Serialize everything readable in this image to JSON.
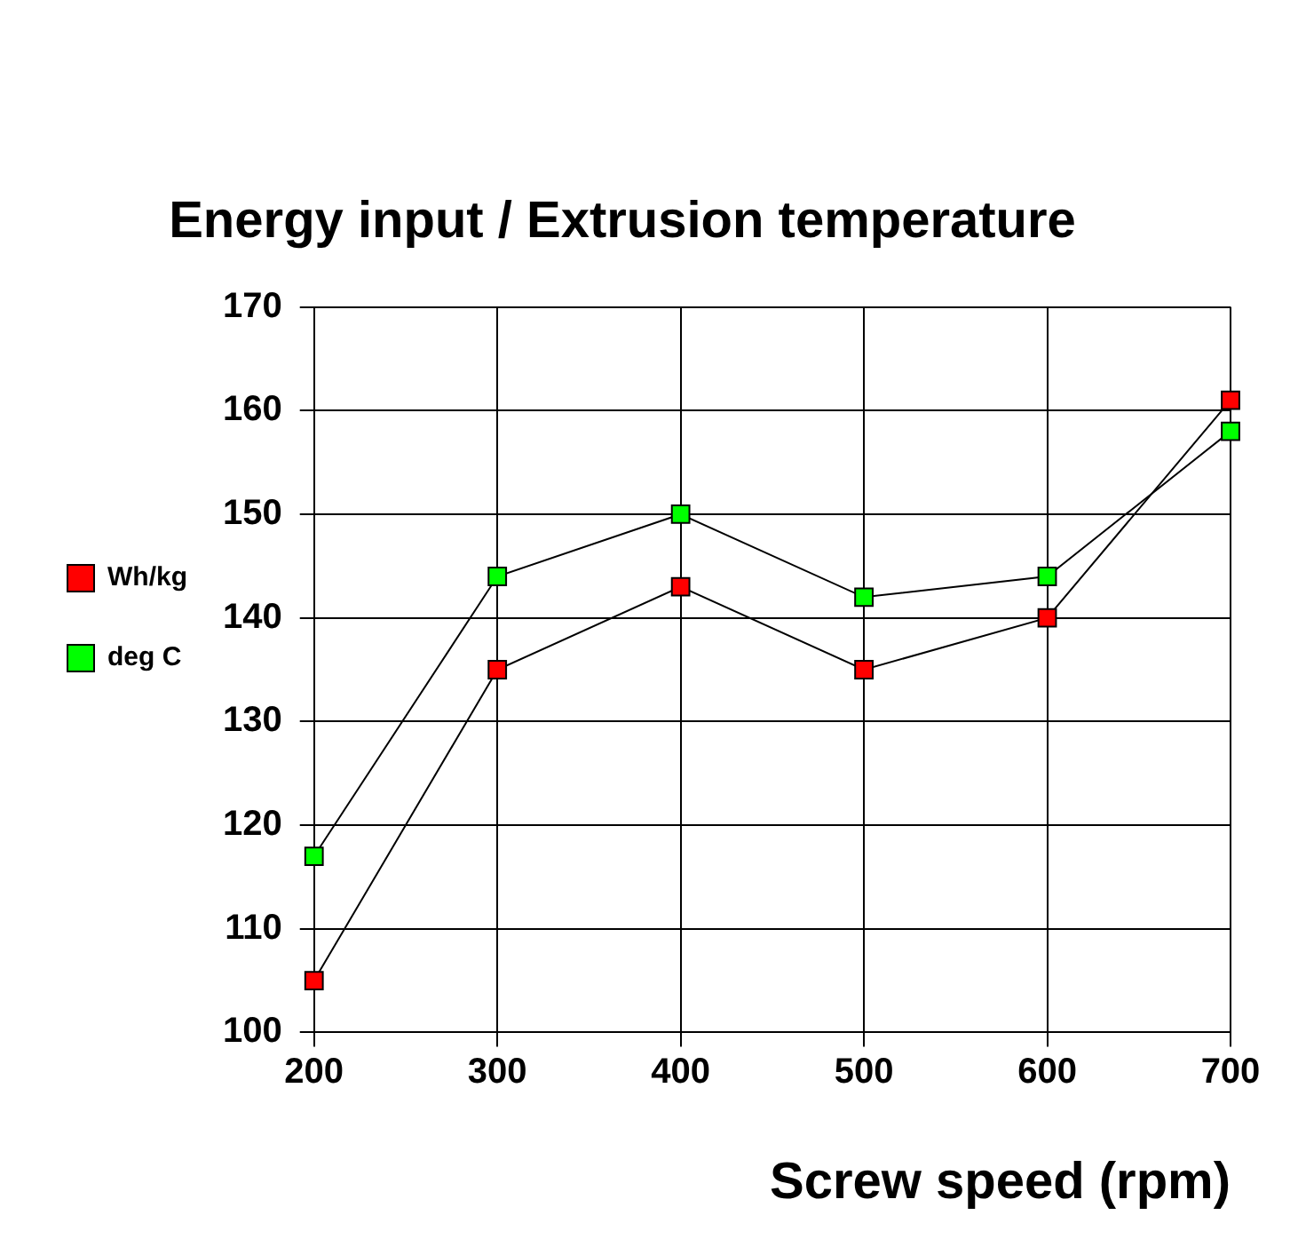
{
  "chart_data": {
    "type": "line",
    "title": "Energy input / Extrusion temperature",
    "xlabel": "Screw speed (rpm)",
    "x": [
      200,
      300,
      400,
      500,
      600,
      700
    ],
    "series": [
      {
        "name": "Wh/kg",
        "color": "#ff0000",
        "values": [
          105,
          135,
          143,
          135,
          140,
          161
        ]
      },
      {
        "name": "deg C",
        "color": "#00ff00",
        "values": [
          117,
          144,
          150,
          142,
          144,
          158
        ]
      }
    ],
    "xlim": [
      200,
      700
    ],
    "xticks": [
      200,
      300,
      400,
      500,
      600,
      700
    ],
    "ylim": [
      100,
      170
    ],
    "yticks": [
      100,
      110,
      120,
      130,
      140,
      150,
      160,
      170
    ],
    "grid": true,
    "legend": "left",
    "marker": "square",
    "line_style": "solid"
  }
}
